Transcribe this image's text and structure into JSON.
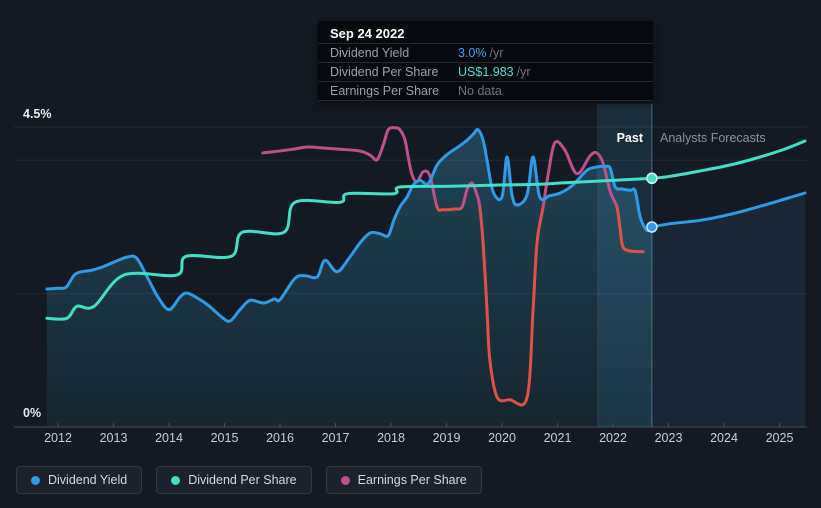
{
  "tooltip": {
    "date": "Sep 24 2022",
    "rows": [
      {
        "label": "Dividend Yield",
        "value": "3.0%",
        "suffix": "/yr",
        "color": "#36a6f2"
      },
      {
        "label": "Dividend Per Share",
        "value": "US$1.983",
        "suffix": "/yr",
        "color": "#45e0c8"
      },
      {
        "label": "Earnings Per Share",
        "value": "No data",
        "suffix": "",
        "color": "#6d757f"
      }
    ]
  },
  "regions": {
    "past_label": "Past",
    "forecast_label": "Analysts Forecasts"
  },
  "axis": {
    "y_top_label": "4.5%",
    "y_bottom_label": "0%",
    "x_labels": [
      "2012",
      "2013",
      "2014",
      "2015",
      "2016",
      "2017",
      "2018",
      "2019",
      "2020",
      "2021",
      "2022",
      "2023",
      "2024",
      "2025"
    ],
    "gridline_pcts": [
      4.5,
      4.0,
      2.0
    ]
  },
  "legend": [
    {
      "label": "Dividend Yield",
      "color": "#2e9be8"
    },
    {
      "label": "Dividend Per Share",
      "color": "#41dfc5"
    },
    {
      "label": "Earnings Per Share",
      "color": "#c0508c"
    }
  ],
  "colors": {
    "background": "#131a23",
    "grid": "#212933",
    "axis_line": "#454e59",
    "yield_blue": "#2e9be8",
    "dps_teal": "#41dfc5",
    "eps_pink": "#c0508c",
    "eps_negative_red": "#e0514a",
    "band_fill": "rgba(86,186,235,0.12)",
    "divider": "rgba(120,200,230,0.45)",
    "past_area_top": "rgba(70,190,230,0.26)",
    "past_area_bottom": "rgba(70,190,230,0.07)",
    "forecast_area": "rgba(80,160,220,0.10)"
  },
  "chart_data": {
    "type": "line",
    "title": "Dividend history and forecast",
    "x_axis": {
      "unit": "year",
      "range": [
        2011.2,
        2025.75
      ],
      "divider_year": 2022.7,
      "highlight_band": [
        2021.71,
        2022.7
      ]
    },
    "y_axis": {
      "unit": "percent",
      "range": [
        0,
        4.5
      ],
      "gridlines": [
        4.5,
        4.0,
        2.0
      ],
      "note": "Dividend Per Share and Earnings Per Share are plotted on the same pixel axis; their values below are axis-equivalent percent positions"
    },
    "marker_date": "Sep 24 2022",
    "series": [
      {
        "name": "Dividend Yield",
        "color": "#2e9be8",
        "marker": {
          "year": 2022.7,
          "value": 3.0,
          "display": "3.0% /yr"
        },
        "past": [
          [
            2011.8,
            2.07
          ],
          [
            2012.0,
            2.08
          ],
          [
            2012.15,
            2.1
          ],
          [
            2012.32,
            2.3
          ],
          [
            2012.6,
            2.35
          ],
          [
            2012.8,
            2.4
          ],
          [
            2013.0,
            2.47
          ],
          [
            2013.25,
            2.55
          ],
          [
            2013.42,
            2.53
          ],
          [
            2013.62,
            2.23
          ],
          [
            2013.8,
            1.95
          ],
          [
            2014.0,
            1.76
          ],
          [
            2014.2,
            1.95
          ],
          [
            2014.32,
            2.01
          ],
          [
            2014.5,
            1.94
          ],
          [
            2014.7,
            1.83
          ],
          [
            2014.95,
            1.65
          ],
          [
            2015.1,
            1.59
          ],
          [
            2015.28,
            1.76
          ],
          [
            2015.46,
            1.9
          ],
          [
            2015.7,
            1.86
          ],
          [
            2015.9,
            1.92
          ],
          [
            2016.0,
            1.91
          ],
          [
            2016.27,
            2.23
          ],
          [
            2016.45,
            2.27
          ],
          [
            2016.67,
            2.25
          ],
          [
            2016.81,
            2.5
          ],
          [
            2017.03,
            2.33
          ],
          [
            2017.26,
            2.55
          ],
          [
            2017.44,
            2.76
          ],
          [
            2017.62,
            2.91
          ],
          [
            2017.8,
            2.9
          ],
          [
            2017.95,
            2.87
          ],
          [
            2018.05,
            3.1
          ],
          [
            2018.16,
            3.3
          ],
          [
            2018.29,
            3.45
          ],
          [
            2018.4,
            3.63
          ],
          [
            2018.52,
            3.7
          ],
          [
            2018.67,
            3.65
          ],
          [
            2018.83,
            3.93
          ],
          [
            2019.0,
            4.08
          ],
          [
            2019.19,
            4.19
          ],
          [
            2019.37,
            4.3
          ],
          [
            2019.5,
            4.41
          ],
          [
            2019.57,
            4.46
          ],
          [
            2019.66,
            4.3
          ],
          [
            2019.73,
            4.0
          ],
          [
            2019.84,
            3.53
          ],
          [
            2020.0,
            3.45
          ],
          [
            2020.09,
            4.05
          ],
          [
            2020.18,
            3.48
          ],
          [
            2020.27,
            3.33
          ],
          [
            2020.45,
            3.48
          ],
          [
            2020.56,
            4.05
          ],
          [
            2020.68,
            3.45
          ],
          [
            2020.86,
            3.47
          ],
          [
            2021.05,
            3.51
          ],
          [
            2021.28,
            3.63
          ],
          [
            2021.53,
            3.85
          ],
          [
            2021.71,
            3.9
          ],
          [
            2021.86,
            3.91
          ],
          [
            2021.95,
            3.88
          ],
          [
            2022.04,
            3.6
          ],
          [
            2022.16,
            3.57
          ],
          [
            2022.31,
            3.55
          ],
          [
            2022.4,
            3.54
          ],
          [
            2022.49,
            3.15
          ],
          [
            2022.61,
            2.95
          ],
          [
            2022.7,
            3.0
          ]
        ],
        "forecast": [
          [
            2022.7,
            3.0
          ],
          [
            2023.03,
            3.05
          ],
          [
            2023.57,
            3.1
          ],
          [
            2024.11,
            3.19
          ],
          [
            2024.65,
            3.31
          ],
          [
            2025.1,
            3.42
          ],
          [
            2025.46,
            3.51
          ]
        ]
      },
      {
        "name": "Dividend Per Share",
        "color": "#41dfc5",
        "marker": {
          "year": 2022.7,
          "value": 3.73,
          "display": "US$1.983 /yr"
        },
        "past": [
          [
            2011.8,
            1.63
          ],
          [
            2012.16,
            1.63
          ],
          [
            2012.34,
            1.81
          ],
          [
            2012.65,
            1.81
          ],
          [
            2013.19,
            2.28
          ],
          [
            2014.14,
            2.28
          ],
          [
            2014.31,
            2.56
          ],
          [
            2015.12,
            2.56
          ],
          [
            2015.32,
            2.92
          ],
          [
            2016.07,
            2.92
          ],
          [
            2016.27,
            3.37
          ],
          [
            2017.08,
            3.37
          ],
          [
            2017.22,
            3.5
          ],
          [
            2018.05,
            3.5
          ],
          [
            2018.16,
            3.6
          ],
          [
            2019.06,
            3.61
          ],
          [
            2019.96,
            3.63
          ],
          [
            2020.68,
            3.64
          ],
          [
            2021.05,
            3.66
          ],
          [
            2021.77,
            3.69
          ],
          [
            2022.7,
            3.73
          ]
        ],
        "forecast": [
          [
            2022.7,
            3.73
          ],
          [
            2023.03,
            3.76
          ],
          [
            2023.57,
            3.84
          ],
          [
            2024.11,
            3.93
          ],
          [
            2024.65,
            4.05
          ],
          [
            2025.1,
            4.17
          ],
          [
            2025.46,
            4.29
          ]
        ]
      },
      {
        "name": "Earnings Per Share",
        "color": "#c0508c",
        "negative_color": "#e0514a",
        "zero_axis_pct": 3.3,
        "points": [
          [
            2015.69,
            4.11
          ],
          [
            2016.18,
            4.16
          ],
          [
            2016.49,
            4.2
          ],
          [
            2016.72,
            4.19
          ],
          [
            2017.03,
            4.17
          ],
          [
            2017.44,
            4.14
          ],
          [
            2017.62,
            4.08
          ],
          [
            2017.75,
            4.01
          ],
          [
            2017.86,
            4.23
          ],
          [
            2017.95,
            4.46
          ],
          [
            2018.07,
            4.49
          ],
          [
            2018.16,
            4.46
          ],
          [
            2018.25,
            4.31
          ],
          [
            2018.31,
            4.05
          ],
          [
            2018.38,
            3.78
          ],
          [
            2018.47,
            3.68
          ],
          [
            2018.58,
            3.83
          ],
          [
            2018.7,
            3.77
          ],
          [
            2018.83,
            3.3
          ],
          [
            2018.94,
            3.26
          ],
          [
            2019.15,
            3.27
          ],
          [
            2019.28,
            3.3
          ],
          [
            2019.37,
            3.56
          ],
          [
            2019.46,
            3.66
          ],
          [
            2019.55,
            3.48
          ],
          [
            2019.6,
            3.3
          ],
          [
            2019.66,
            2.76
          ],
          [
            2019.73,
            1.76
          ],
          [
            2019.78,
            1.01
          ],
          [
            2019.91,
            0.45
          ],
          [
            2020.14,
            0.41
          ],
          [
            2020.45,
            0.44
          ],
          [
            2020.56,
            1.76
          ],
          [
            2020.63,
            2.76
          ],
          [
            2020.74,
            3.3
          ],
          [
            2020.83,
            3.78
          ],
          [
            2020.95,
            4.26
          ],
          [
            2021.13,
            4.16
          ],
          [
            2021.35,
            3.8
          ],
          [
            2021.59,
            4.07
          ],
          [
            2021.71,
            4.11
          ],
          [
            2021.82,
            3.96
          ],
          [
            2021.95,
            3.53
          ],
          [
            2022.07,
            3.3
          ],
          [
            2022.13,
            2.96
          ],
          [
            2022.18,
            2.7
          ],
          [
            2022.31,
            2.64
          ],
          [
            2022.54,
            2.63
          ]
        ],
        "negative_intervals": [
          [
            2018.83,
            2019.28
          ],
          [
            2019.6,
            2020.74
          ],
          [
            2022.07,
            2022.54
          ]
        ]
      }
    ]
  }
}
